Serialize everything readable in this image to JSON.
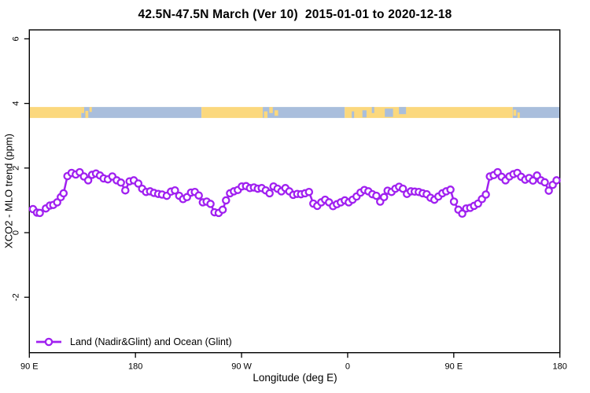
{
  "title": "42.5N-47.5N March (Ver 10)  2015-01-01 to 2020-12-18",
  "legend": {
    "label": "Land (Nadir&Glint) and Ocean (Glint)"
  },
  "colors": {
    "series": "#A020F0",
    "marker_fill": "#FFFFFF",
    "land": "#FBD87D",
    "ocean": "#A9BEDC",
    "frame": "#000000",
    "text": "#000000"
  },
  "map_band": {
    "value_from": 3.55,
    "value_to": 3.89,
    "segments": [
      {
        "from": 90,
        "to": 134,
        "surface": "land"
      },
      {
        "from": 134,
        "to": 236,
        "surface": "ocean"
      },
      {
        "from": 236,
        "to": 288,
        "surface": "land"
      },
      {
        "from": 288,
        "to": 357.5,
        "surface": "ocean"
      },
      {
        "from": 357.5,
        "to": 500,
        "surface": "land"
      },
      {
        "from": 500,
        "to": 540,
        "surface": "ocean"
      }
    ],
    "patches": [
      {
        "from": 134,
        "to": 136.5,
        "surface": "land",
        "frac": [
          0.0,
          0.55
        ]
      },
      {
        "from": 137.5,
        "to": 140,
        "surface": "land",
        "frac": [
          0.35,
          1.0
        ]
      },
      {
        "from": 141,
        "to": 143,
        "surface": "land",
        "frac": [
          0.0,
          0.45
        ]
      },
      {
        "from": 289,
        "to": 292,
        "surface": "land",
        "frac": [
          0.4,
          1.0
        ]
      },
      {
        "from": 293.5,
        "to": 296.5,
        "surface": "land",
        "frac": [
          0.0,
          0.55
        ]
      },
      {
        "from": 298,
        "to": 301,
        "surface": "land",
        "frac": [
          0.3,
          0.8
        ]
      },
      {
        "from": 363.5,
        "to": 365.5,
        "surface": "ocean",
        "frac": [
          0.4,
          1.0
        ]
      },
      {
        "from": 372.5,
        "to": 376,
        "surface": "ocean",
        "frac": [
          0.3,
          0.95
        ]
      },
      {
        "from": 380.5,
        "to": 382.5,
        "surface": "ocean",
        "frac": [
          0.0,
          0.55
        ]
      },
      {
        "from": 391.5,
        "to": 398.5,
        "surface": "ocean",
        "frac": [
          0.15,
          0.9
        ]
      },
      {
        "from": 403.5,
        "to": 409.5,
        "surface": "ocean",
        "frac": [
          0.0,
          0.65
        ]
      },
      {
        "from": 500.5,
        "to": 503,
        "surface": "land",
        "frac": [
          0.25,
          0.8
        ]
      },
      {
        "from": 504,
        "to": 506,
        "surface": "land",
        "frac": [
          0.5,
          1.0
        ]
      }
    ]
  },
  "chart_data": {
    "type": "line",
    "title": "42.5N-47.5N March (Ver 10)  2015-01-01 to 2020-12-18",
    "xlabel": "Longitude (deg E)",
    "ylabel": "XCO2 - MLO trend (ppm)",
    "xlim": [
      90,
      540
    ],
    "ylim": [
      -3.7,
      6.3
    ],
    "grid": false,
    "legend_position": "bottom-left",
    "x_ticks": [
      {
        "pos": 90,
        "label": "90 E"
      },
      {
        "pos": 180,
        "label": "180"
      },
      {
        "pos": 270,
        "label": "90 W"
      },
      {
        "pos": 360,
        "label": "0"
      },
      {
        "pos": 450,
        "label": "90 E"
      },
      {
        "pos": 540,
        "label": "180"
      }
    ],
    "y_ticks": [
      {
        "pos": -2,
        "label": "-2"
      },
      {
        "pos": 0,
        "label": "0"
      },
      {
        "pos": 2,
        "label": "2"
      },
      {
        "pos": 4,
        "label": "4"
      },
      {
        "pos": 6,
        "label": "6"
      }
    ],
    "series": [
      {
        "name": "Land (Nadir&Glint) and Ocean (Glint)",
        "marker": "open-circle",
        "points": [
          [
            93.1,
            0.73
          ],
          [
            96.5,
            0.62
          ],
          [
            98.9,
            0.61
          ],
          [
            104.0,
            0.75
          ],
          [
            107.4,
            0.84
          ],
          [
            110.3,
            0.86
          ],
          [
            113.6,
            0.94
          ],
          [
            116.7,
            1.1
          ],
          [
            119.0,
            1.22
          ],
          [
            122.3,
            1.75
          ],
          [
            125.8,
            1.85
          ],
          [
            129.4,
            1.8
          ],
          [
            132.7,
            1.87
          ],
          [
            136.3,
            1.74
          ],
          [
            139.9,
            1.62
          ],
          [
            143.2,
            1.79
          ],
          [
            146.5,
            1.83
          ],
          [
            149.9,
            1.77
          ],
          [
            153.0,
            1.68
          ],
          [
            156.6,
            1.65
          ],
          [
            160.4,
            1.74
          ],
          [
            164.1,
            1.62
          ],
          [
            167.7,
            1.55
          ],
          [
            171.4,
            1.31
          ],
          [
            175.0,
            1.59
          ],
          [
            178.6,
            1.62
          ],
          [
            182.4,
            1.52
          ],
          [
            185.7,
            1.36
          ],
          [
            189.0,
            1.26
          ],
          [
            192.4,
            1.28
          ],
          [
            195.7,
            1.23
          ],
          [
            199.3,
            1.2
          ],
          [
            202.6,
            1.18
          ],
          [
            206.6,
            1.14
          ],
          [
            210.1,
            1.27
          ],
          [
            213.5,
            1.31
          ],
          [
            217.1,
            1.14
          ],
          [
            220.4,
            1.04
          ],
          [
            223.7,
            1.1
          ],
          [
            227.1,
            1.24
          ],
          [
            230.4,
            1.26
          ],
          [
            233.7,
            1.15
          ],
          [
            237.1,
            0.94
          ],
          [
            240.4,
            0.96
          ],
          [
            243.7,
            0.89
          ],
          [
            247.1,
            0.63
          ],
          [
            250.6,
            0.61
          ],
          [
            254.0,
            0.71
          ],
          [
            256.8,
            1.0
          ],
          [
            260.2,
            1.22
          ],
          [
            263.5,
            1.28
          ],
          [
            266.8,
            1.32
          ],
          [
            270.2,
            1.43
          ],
          [
            273.8,
            1.44
          ],
          [
            277.1,
            1.38
          ],
          [
            280.5,
            1.4
          ],
          [
            283.8,
            1.36
          ],
          [
            287.1,
            1.38
          ],
          [
            290.5,
            1.31
          ],
          [
            293.8,
            1.22
          ],
          [
            297.1,
            1.43
          ],
          [
            300.5,
            1.36
          ],
          [
            303.8,
            1.28
          ],
          [
            307.2,
            1.38
          ],
          [
            310.5,
            1.28
          ],
          [
            313.8,
            1.17
          ],
          [
            317.2,
            1.2
          ],
          [
            320.5,
            1.19
          ],
          [
            323.8,
            1.22
          ],
          [
            327.2,
            1.26
          ],
          [
            330.9,
            0.9
          ],
          [
            334.2,
            0.83
          ],
          [
            337.6,
            0.94
          ],
          [
            340.9,
            1.02
          ],
          [
            344.2,
            0.94
          ],
          [
            347.6,
            0.82
          ],
          [
            350.9,
            0.88
          ],
          [
            354.2,
            0.94
          ],
          [
            357.6,
            1.0
          ],
          [
            360.9,
            0.94
          ],
          [
            364.2,
            1.02
          ],
          [
            367.6,
            1.12
          ],
          [
            370.9,
            1.24
          ],
          [
            374.2,
            1.32
          ],
          [
            377.6,
            1.28
          ],
          [
            380.9,
            1.19
          ],
          [
            384.3,
            1.14
          ],
          [
            387.6,
            0.96
          ],
          [
            390.9,
            1.1
          ],
          [
            393.9,
            1.3
          ],
          [
            397.2,
            1.26
          ],
          [
            400.5,
            1.36
          ],
          [
            403.6,
            1.42
          ],
          [
            406.9,
            1.36
          ],
          [
            410.3,
            1.2
          ],
          [
            413.6,
            1.28
          ],
          [
            416.9,
            1.27
          ],
          [
            420.3,
            1.26
          ],
          [
            423.6,
            1.22
          ],
          [
            427.0,
            1.19
          ],
          [
            430.3,
            1.08
          ],
          [
            433.6,
            1.02
          ],
          [
            437.0,
            1.12
          ],
          [
            440.3,
            1.22
          ],
          [
            443.6,
            1.28
          ],
          [
            447.2,
            1.33
          ],
          [
            450.2,
            0.96
          ],
          [
            453.9,
            0.71
          ],
          [
            457.2,
            0.59
          ],
          [
            460.6,
            0.75
          ],
          [
            463.9,
            0.77
          ],
          [
            467.2,
            0.83
          ],
          [
            470.6,
            0.9
          ],
          [
            473.9,
            1.04
          ],
          [
            477.2,
            1.18
          ],
          [
            480.6,
            1.74
          ],
          [
            483.9,
            1.78
          ],
          [
            487.2,
            1.87
          ],
          [
            490.6,
            1.73
          ],
          [
            493.9,
            1.62
          ],
          [
            497.2,
            1.74
          ],
          [
            500.6,
            1.81
          ],
          [
            503.9,
            1.85
          ],
          [
            507.2,
            1.73
          ],
          [
            510.6,
            1.64
          ],
          [
            513.9,
            1.69
          ],
          [
            517.2,
            1.61
          ],
          [
            520.6,
            1.77
          ],
          [
            523.9,
            1.62
          ],
          [
            527.2,
            1.56
          ],
          [
            530.6,
            1.3
          ],
          [
            533.9,
            1.48
          ],
          [
            537.2,
            1.62
          ]
        ]
      }
    ]
  }
}
